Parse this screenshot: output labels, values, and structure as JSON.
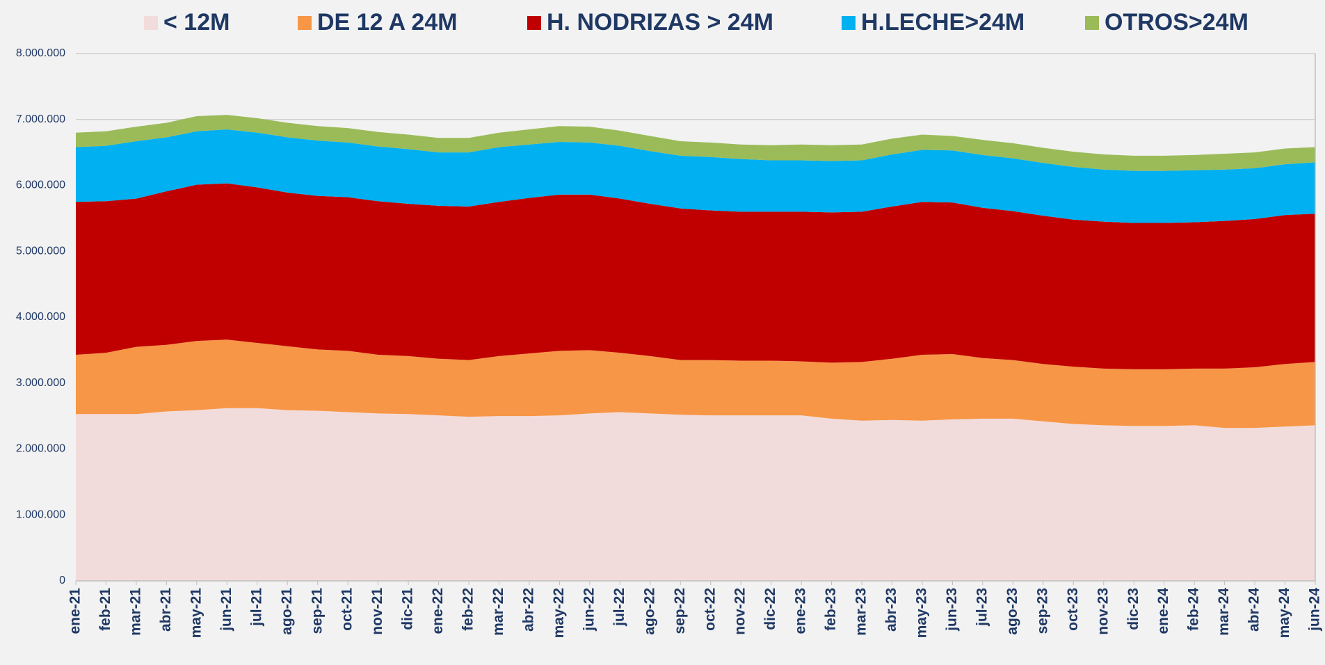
{
  "chart_data": {
    "type": "stacked_area",
    "categories": [
      "ene-21",
      "feb-21",
      "mar-21",
      "abr-21",
      "may-21",
      "jun-21",
      "jul-21",
      "ago-21",
      "sep-21",
      "oct-21",
      "nov-21",
      "dic-21",
      "ene-22",
      "feb-22",
      "mar-22",
      "abr-22",
      "may-22",
      "jun-22",
      "jul-22",
      "ago-22",
      "sep-22",
      "oct-22",
      "nov-22",
      "dic-22",
      "ene-23",
      "feb-23",
      "mar-23",
      "abr-23",
      "may-23",
      "jun-23",
      "jul-23",
      "ago-23",
      "sep-23",
      "oct-23",
      "nov-23",
      "dic-23",
      "ene-24",
      "feb-24",
      "mar-24",
      "abr-24",
      "may-24",
      "jun-24"
    ],
    "series": [
      {
        "name": "< 12M",
        "color": "#f2dcdb",
        "values": [
          2530000,
          2530000,
          2530000,
          2570000,
          2590000,
          2620000,
          2620000,
          2590000,
          2580000,
          2560000,
          2540000,
          2530000,
          2510000,
          2490000,
          2500000,
          2500000,
          2510000,
          2540000,
          2560000,
          2540000,
          2520000,
          2510000,
          2510000,
          2510000,
          2510000,
          2460000,
          2430000,
          2440000,
          2430000,
          2450000,
          2460000,
          2460000,
          2420000,
          2380000,
          2360000,
          2350000,
          2350000,
          2360000,
          2320000,
          2320000,
          2340000,
          2360000
        ]
      },
      {
        "name": "DE 12 A 24M",
        "color": "#f79646",
        "values": [
          900000,
          930000,
          1020000,
          1010000,
          1050000,
          1040000,
          990000,
          970000,
          930000,
          930000,
          890000,
          880000,
          860000,
          860000,
          910000,
          950000,
          980000,
          960000,
          900000,
          870000,
          830000,
          840000,
          830000,
          830000,
          820000,
          850000,
          890000,
          930000,
          1000000,
          990000,
          920000,
          890000,
          870000,
          870000,
          860000,
          860000,
          860000,
          860000,
          900000,
          920000,
          950000,
          960000
        ]
      },
      {
        "name": "H. NODRIZAS > 24M",
        "color": "#c00000",
        "values": [
          2320000,
          2300000,
          2250000,
          2330000,
          2370000,
          2370000,
          2360000,
          2330000,
          2330000,
          2330000,
          2330000,
          2310000,
          2320000,
          2330000,
          2340000,
          2360000,
          2370000,
          2360000,
          2340000,
          2310000,
          2300000,
          2270000,
          2260000,
          2260000,
          2270000,
          2280000,
          2280000,
          2310000,
          2320000,
          2300000,
          2280000,
          2260000,
          2250000,
          2230000,
          2230000,
          2220000,
          2220000,
          2220000,
          2240000,
          2250000,
          2260000,
          2250000
        ]
      },
      {
        "name": "H.LECHE>24M",
        "color": "#00b0f0",
        "values": [
          830000,
          840000,
          870000,
          820000,
          810000,
          820000,
          830000,
          840000,
          840000,
          830000,
          830000,
          830000,
          810000,
          820000,
          830000,
          810000,
          800000,
          790000,
          800000,
          800000,
          800000,
          810000,
          800000,
          780000,
          780000,
          780000,
          780000,
          790000,
          790000,
          790000,
          800000,
          800000,
          800000,
          800000,
          790000,
          790000,
          790000,
          790000,
          780000,
          770000,
          770000,
          780000
        ]
      },
      {
        "name": "OTROS>24M",
        "color": "#9bbb59",
        "values": [
          220000,
          220000,
          220000,
          220000,
          230000,
          220000,
          220000,
          220000,
          220000,
          220000,
          220000,
          220000,
          220000,
          220000,
          220000,
          230000,
          240000,
          240000,
          230000,
          230000,
          220000,
          220000,
          220000,
          230000,
          240000,
          240000,
          240000,
          240000,
          230000,
          220000,
          230000,
          230000,
          230000,
          230000,
          230000,
          230000,
          230000,
          230000,
          240000,
          240000,
          240000,
          230000
        ]
      }
    ],
    "ylim": [
      0,
      8000000
    ],
    "yticks": [
      0,
      {
        "value": 1000000,
        "label": "1.000.000"
      },
      {
        "value": 2000000,
        "label": "2.000.000"
      },
      {
        "value": 3000000,
        "label": "3.000.000"
      },
      {
        "value": 4000000,
        "label": "4.000.000"
      },
      {
        "value": 5000000,
        "label": "5.000.000"
      },
      {
        "value": 6000000,
        "label": "6.000.000"
      },
      {
        "value": 7000000,
        "label": "7.000.000"
      },
      {
        "value": 8000000,
        "label": "8.000.000"
      }
    ],
    "grid": true,
    "legend": "top"
  }
}
